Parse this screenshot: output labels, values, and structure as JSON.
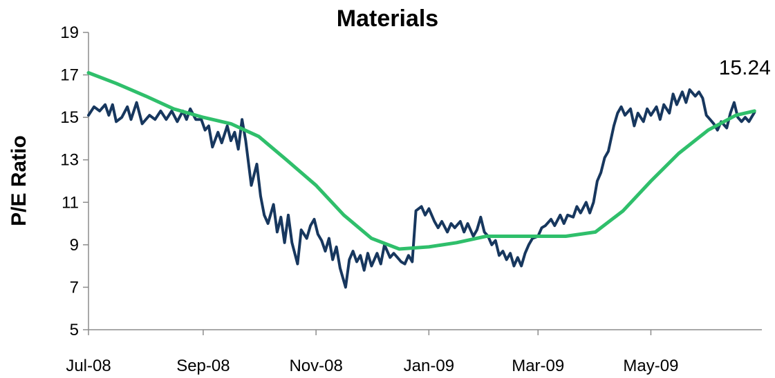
{
  "chart_data": {
    "type": "line",
    "title": "Materials",
    "xlabel": "",
    "ylabel": "P/E Ratio",
    "ylim": [
      5,
      19
    ],
    "yticks": [
      "19",
      "17",
      "15",
      "13",
      "11",
      "9",
      "7",
      "5"
    ],
    "xlim": [
      "2008-07-01",
      "2009-06-30"
    ],
    "xticks": [
      {
        "label": "Jul-08",
        "date": "2008-07-01"
      },
      {
        "label": "Sep-08",
        "date": "2008-09-01"
      },
      {
        "label": "Nov-08",
        "date": "2008-11-01"
      },
      {
        "label": "Jan-09",
        "date": "2009-01-01"
      },
      {
        "label": "Mar-09",
        "date": "2009-03-01"
      },
      {
        "label": "May-09",
        "date": "2009-05-01"
      }
    ],
    "grid": false,
    "legend": "none",
    "annotation": {
      "text": "15.24",
      "x": "2009-06-26",
      "y": 15.24
    },
    "series": [
      {
        "color": "#17375e",
        "points": [
          [
            "2008-07-01",
            15.1
          ],
          [
            "2008-07-04",
            15.5
          ],
          [
            "2008-07-07",
            15.3
          ],
          [
            "2008-07-10",
            15.6
          ],
          [
            "2008-07-12",
            15.1
          ],
          [
            "2008-07-14",
            15.6
          ],
          [
            "2008-07-16",
            14.8
          ],
          [
            "2008-07-19",
            15.0
          ],
          [
            "2008-07-22",
            15.5
          ],
          [
            "2008-07-24",
            14.9
          ],
          [
            "2008-07-27",
            15.7
          ],
          [
            "2008-07-30",
            14.7
          ],
          [
            "2008-08-03",
            15.1
          ],
          [
            "2008-08-06",
            14.9
          ],
          [
            "2008-08-09",
            15.3
          ],
          [
            "2008-08-12",
            14.9
          ],
          [
            "2008-08-15",
            15.3
          ],
          [
            "2008-08-18",
            14.8
          ],
          [
            "2008-08-21",
            15.3
          ],
          [
            "2008-08-23",
            14.9
          ],
          [
            "2008-08-25",
            15.4
          ],
          [
            "2008-08-28",
            14.9
          ],
          [
            "2008-08-31",
            14.9
          ],
          [
            "2008-09-02",
            14.4
          ],
          [
            "2008-09-04",
            14.6
          ],
          [
            "2008-09-06",
            13.6
          ],
          [
            "2008-09-09",
            14.3
          ],
          [
            "2008-09-11",
            13.8
          ],
          [
            "2008-09-14",
            14.6
          ],
          [
            "2008-09-16",
            13.9
          ],
          [
            "2008-09-18",
            14.3
          ],
          [
            "2008-09-20",
            13.5
          ],
          [
            "2008-09-22",
            14.9
          ],
          [
            "2008-09-24",
            13.9
          ],
          [
            "2008-09-27",
            11.8
          ],
          [
            "2008-09-30",
            12.8
          ],
          [
            "2008-10-02",
            11.3
          ],
          [
            "2008-10-04",
            10.4
          ],
          [
            "2008-10-06",
            10.0
          ],
          [
            "2008-10-09",
            10.9
          ],
          [
            "2008-10-11",
            9.6
          ],
          [
            "2008-10-13",
            10.3
          ],
          [
            "2008-10-15",
            9.1
          ],
          [
            "2008-10-17",
            10.4
          ],
          [
            "2008-10-19",
            9.1
          ],
          [
            "2008-10-22",
            8.1
          ],
          [
            "2008-10-24",
            9.7
          ],
          [
            "2008-10-27",
            9.3
          ],
          [
            "2008-10-29",
            9.9
          ],
          [
            "2008-10-31",
            10.2
          ],
          [
            "2008-11-02",
            9.5
          ],
          [
            "2008-11-04",
            9.2
          ],
          [
            "2008-11-06",
            8.7
          ],
          [
            "2008-11-08",
            9.3
          ],
          [
            "2008-11-10",
            8.3
          ],
          [
            "2008-11-12",
            8.9
          ],
          [
            "2008-11-14",
            7.9
          ],
          [
            "2008-11-17",
            7.0
          ],
          [
            "2008-11-19",
            8.3
          ],
          [
            "2008-11-21",
            8.7
          ],
          [
            "2008-11-23",
            8.2
          ],
          [
            "2008-11-25",
            8.5
          ],
          [
            "2008-11-27",
            7.8
          ],
          [
            "2008-11-29",
            8.6
          ],
          [
            "2008-12-01",
            8.0
          ],
          [
            "2008-12-04",
            8.6
          ],
          [
            "2008-12-06",
            8.1
          ],
          [
            "2008-12-08",
            9.0
          ],
          [
            "2008-12-11",
            8.4
          ],
          [
            "2008-12-13",
            8.6
          ],
          [
            "2008-12-15",
            8.4
          ],
          [
            "2008-12-17",
            8.2
          ],
          [
            "2008-12-19",
            8.1
          ],
          [
            "2008-12-21",
            8.5
          ],
          [
            "2008-12-23",
            8.2
          ],
          [
            "2008-12-25",
            10.6
          ],
          [
            "2008-12-28",
            10.8
          ],
          [
            "2008-12-30",
            10.4
          ],
          [
            "2009-01-01",
            10.7
          ],
          [
            "2009-01-04",
            10.1
          ],
          [
            "2009-01-06",
            9.8
          ],
          [
            "2009-01-08",
            10.1
          ],
          [
            "2009-01-11",
            9.6
          ],
          [
            "2009-01-13",
            10.0
          ],
          [
            "2009-01-15",
            9.8
          ],
          [
            "2009-01-18",
            10.1
          ],
          [
            "2009-01-20",
            9.6
          ],
          [
            "2009-01-22",
            10.0
          ],
          [
            "2009-01-25",
            9.4
          ],
          [
            "2009-01-27",
            9.7
          ],
          [
            "2009-01-29",
            10.3
          ],
          [
            "2009-01-31",
            9.6
          ],
          [
            "2009-02-02",
            9.4
          ],
          [
            "2009-02-04",
            9.0
          ],
          [
            "2009-02-06",
            9.2
          ],
          [
            "2009-02-08",
            8.5
          ],
          [
            "2009-02-10",
            8.7
          ],
          [
            "2009-02-12",
            8.3
          ],
          [
            "2009-02-14",
            8.6
          ],
          [
            "2009-02-16",
            8.0
          ],
          [
            "2009-02-18",
            8.4
          ],
          [
            "2009-02-20",
            8.0
          ],
          [
            "2009-02-22",
            8.6
          ],
          [
            "2009-02-24",
            9.0
          ],
          [
            "2009-02-26",
            9.3
          ],
          [
            "2009-03-01",
            9.4
          ],
          [
            "2009-03-03",
            9.8
          ],
          [
            "2009-03-05",
            9.9
          ],
          [
            "2009-03-08",
            10.2
          ],
          [
            "2009-03-10",
            9.9
          ],
          [
            "2009-03-13",
            10.4
          ],
          [
            "2009-03-15",
            10.0
          ],
          [
            "2009-03-17",
            10.4
          ],
          [
            "2009-03-20",
            10.3
          ],
          [
            "2009-03-22",
            10.8
          ],
          [
            "2009-03-24",
            10.5
          ],
          [
            "2009-03-27",
            11.0
          ],
          [
            "2009-03-29",
            10.5
          ],
          [
            "2009-03-31",
            11.0
          ],
          [
            "2009-04-02",
            12.0
          ],
          [
            "2009-04-04",
            12.4
          ],
          [
            "2009-04-06",
            13.1
          ],
          [
            "2009-04-08",
            13.4
          ],
          [
            "2009-04-11",
            14.6
          ],
          [
            "2009-04-13",
            15.2
          ],
          [
            "2009-04-15",
            15.5
          ],
          [
            "2009-04-17",
            15.1
          ],
          [
            "2009-04-20",
            15.4
          ],
          [
            "2009-04-22",
            14.6
          ],
          [
            "2009-04-24",
            15.2
          ],
          [
            "2009-04-27",
            14.8
          ],
          [
            "2009-04-29",
            15.4
          ],
          [
            "2009-05-01",
            15.1
          ],
          [
            "2009-05-04",
            15.5
          ],
          [
            "2009-05-06",
            14.9
          ],
          [
            "2009-05-08",
            15.6
          ],
          [
            "2009-05-11",
            15.2
          ],
          [
            "2009-05-13",
            16.1
          ],
          [
            "2009-05-15",
            15.6
          ],
          [
            "2009-05-18",
            16.2
          ],
          [
            "2009-05-20",
            15.7
          ],
          [
            "2009-05-22",
            16.3
          ],
          [
            "2009-05-25",
            16.0
          ],
          [
            "2009-05-27",
            16.2
          ],
          [
            "2009-05-29",
            15.9
          ],
          [
            "2009-05-31",
            15.1
          ],
          [
            "2009-06-02",
            14.9
          ],
          [
            "2009-06-04",
            14.7
          ],
          [
            "2009-06-06",
            14.4
          ],
          [
            "2009-06-08",
            14.8
          ],
          [
            "2009-06-11",
            14.5
          ],
          [
            "2009-06-13",
            15.2
          ],
          [
            "2009-06-15",
            15.7
          ],
          [
            "2009-06-17",
            15.0
          ],
          [
            "2009-06-19",
            14.8
          ],
          [
            "2009-06-21",
            15.0
          ],
          [
            "2009-06-23",
            14.8
          ],
          [
            "2009-06-26",
            15.24
          ]
        ]
      },
      {
        "color": "#2fbf6b",
        "points": [
          [
            "2008-07-01",
            17.1
          ],
          [
            "2008-07-16",
            16.6
          ],
          [
            "2008-08-01",
            16.0
          ],
          [
            "2008-08-16",
            15.4
          ],
          [
            "2008-09-01",
            15.0
          ],
          [
            "2008-09-16",
            14.7
          ],
          [
            "2008-10-01",
            14.1
          ],
          [
            "2008-10-16",
            13.0
          ],
          [
            "2008-11-01",
            11.8
          ],
          [
            "2008-11-16",
            10.4
          ],
          [
            "2008-12-01",
            9.3
          ],
          [
            "2008-12-16",
            8.8
          ],
          [
            "2009-01-01",
            8.9
          ],
          [
            "2009-01-16",
            9.1
          ],
          [
            "2009-02-01",
            9.4
          ],
          [
            "2009-02-16",
            9.4
          ],
          [
            "2009-03-01",
            9.4
          ],
          [
            "2009-03-16",
            9.4
          ],
          [
            "2009-04-01",
            9.6
          ],
          [
            "2009-04-16",
            10.6
          ],
          [
            "2009-05-01",
            12.0
          ],
          [
            "2009-05-16",
            13.3
          ],
          [
            "2009-06-01",
            14.4
          ],
          [
            "2009-06-16",
            15.1
          ],
          [
            "2009-06-26",
            15.3
          ]
        ]
      }
    ]
  }
}
